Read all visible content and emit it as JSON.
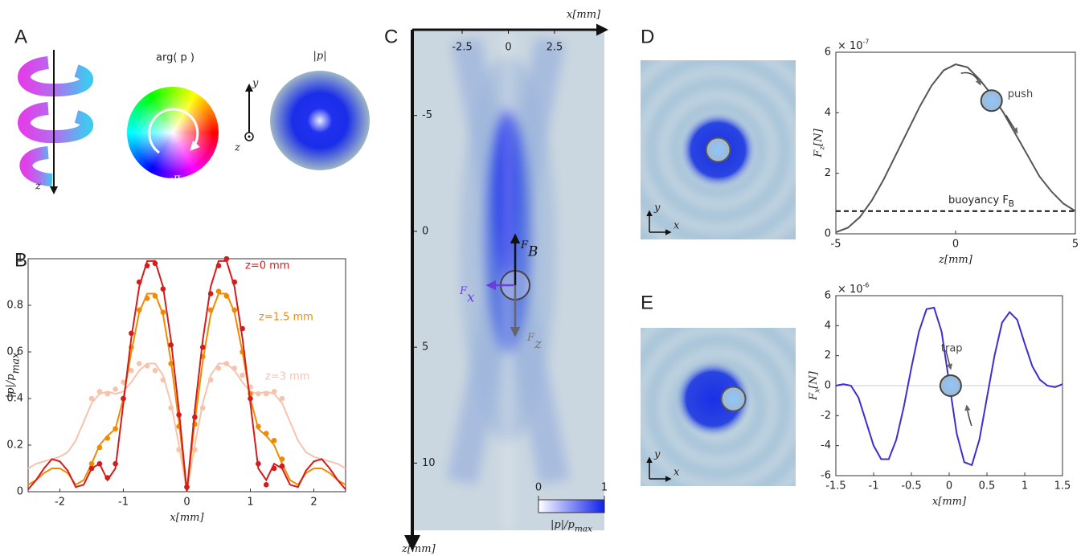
{
  "panel_labels": [
    "A",
    "B",
    "C",
    "D",
    "E"
  ],
  "panel_a": {
    "helix_axis": "z",
    "arg_label": "arg( p )",
    "phase_min": "-π",
    "phase_max": "π",
    "axis_y": "y",
    "axis_z": "z",
    "abs_label": "|p|"
  },
  "chart_data": [
    {
      "type": "line",
      "xlabel": [
        "x[mm]"
      ],
      "ylabel": [
        "|p|/p",
        "max"
      ],
      "xlim": [
        -2.5,
        2.5
      ],
      "xticks": [
        -2,
        -1,
        0,
        1,
        2
      ],
      "ylim": [
        0,
        1
      ],
      "yticks": [
        0,
        0.2,
        0.4,
        0.6,
        0.8,
        1
      ],
      "x": [
        -2.5,
        -2.375,
        -2.25,
        -2.125,
        -2,
        -1.875,
        -1.75,
        -1.625,
        -1.5,
        -1.375,
        -1.25,
        -1.125,
        -1,
        -0.875,
        -0.75,
        -0.625,
        -0.5,
        -0.375,
        -0.25,
        -0.125,
        0,
        0.125,
        0.25,
        0.375,
        0.5,
        0.625,
        0.75,
        0.875,
        1,
        1.125,
        1.25,
        1.375,
        1.5,
        1.625,
        1.75,
        1.875,
        2,
        2.125,
        2.25,
        2.375,
        2.5
      ],
      "measured_x": [
        -1.5,
        -1.375,
        -1.25,
        -1.125,
        -1,
        -0.875,
        -0.75,
        -0.625,
        -0.5,
        -0.375,
        -0.25,
        -0.125,
        0,
        0.125,
        0.25,
        0.375,
        0.5,
        0.625,
        0.75,
        0.875,
        1,
        1.125,
        1.25,
        1.375,
        1.5
      ],
      "series": [
        {
          "name": "z=3 mm",
          "color": "#f8c3ad",
          "values": [
            0.1,
            0.12,
            0.13,
            0.14,
            0.15,
            0.17,
            0.22,
            0.3,
            0.38,
            0.42,
            0.43,
            0.42,
            0.43,
            0.47,
            0.52,
            0.55,
            0.55,
            0.5,
            0.38,
            0.2,
            0,
            0.2,
            0.38,
            0.5,
            0.55,
            0.55,
            0.52,
            0.47,
            0.43,
            0.42,
            0.43,
            0.42,
            0.38,
            0.3,
            0.22,
            0.17,
            0.15,
            0.14,
            0.13,
            0.12,
            0.1
          ],
          "measured": [
            0.4,
            0.43,
            0.42,
            0.44,
            0.47,
            0.52,
            0.55,
            0.54,
            0.52,
            0.48,
            0.36,
            0.18,
            0.02,
            0.18,
            0.36,
            0.48,
            0.53,
            0.55,
            0.53,
            0.5,
            0.45,
            0.42,
            0.42,
            0.43,
            0.4
          ]
        },
        {
          "name": "z=1.5 mm",
          "color": "#f28a00",
          "values": [
            0.03,
            0.05,
            0.08,
            0.1,
            0.1,
            0.08,
            0.03,
            0.05,
            0.12,
            0.2,
            0.24,
            0.27,
            0.4,
            0.6,
            0.77,
            0.85,
            0.85,
            0.76,
            0.56,
            0.3,
            0,
            0.3,
            0.56,
            0.76,
            0.85,
            0.85,
            0.77,
            0.6,
            0.4,
            0.27,
            0.24,
            0.2,
            0.12,
            0.05,
            0.03,
            0.08,
            0.1,
            0.1,
            0.08,
            0.05,
            0.03
          ],
          "measured": [
            0.12,
            0.19,
            0.23,
            0.27,
            0.4,
            0.62,
            0.78,
            0.83,
            0.84,
            0.77,
            0.55,
            0.28,
            0.02,
            0.29,
            0.58,
            0.78,
            0.86,
            0.84,
            0.78,
            0.6,
            0.42,
            0.28,
            0.25,
            0.22,
            0.14
          ]
        },
        {
          "name": "z=0 mm",
          "color": "#d41c1c",
          "values": [
            0.01,
            0.05,
            0.1,
            0.14,
            0.13,
            0.09,
            0.02,
            0.03,
            0.1,
            0.12,
            0.05,
            0.1,
            0.38,
            0.66,
            0.88,
            0.99,
            0.99,
            0.88,
            0.65,
            0.35,
            0,
            0.35,
            0.65,
            0.88,
            0.99,
            0.99,
            0.88,
            0.66,
            0.38,
            0.1,
            0.05,
            0.12,
            0.1,
            0.03,
            0.02,
            0.09,
            0.13,
            0.14,
            0.1,
            0.05,
            0.01
          ],
          "measured": [
            0.1,
            0.12,
            0.06,
            0.12,
            0.4,
            0.68,
            0.9,
            0.97,
            0.98,
            0.87,
            0.63,
            0.33,
            0.02,
            0.32,
            0.62,
            0.85,
            0.97,
            1,
            0.9,
            0.7,
            0.4,
            0.12,
            0.03,
            0.1,
            0.11
          ]
        }
      ]
    },
    {
      "type": "field",
      "xlabel": [
        "x[mm]"
      ],
      "ylabel": [
        "z[mm]"
      ],
      "xlim": [
        -5.2,
        5.2
      ],
      "xticks": [
        -2.5,
        0,
        2.5
      ],
      "ylim": [
        -8.7,
        12.9
      ],
      "yticks": [
        -5,
        0,
        5,
        10
      ],
      "forces": [
        [
          "F",
          "B"
        ],
        [
          "F",
          "x"
        ],
        [
          "F",
          "z"
        ]
      ],
      "colorbar": {
        "ticks": [
          0,
          1
        ],
        "label": [
          "|p|/p",
          "max"
        ]
      }
    },
    {
      "type": "line",
      "image_axes": [
        "x",
        "y"
      ],
      "xlabel": [
        "z[mm]"
      ],
      "ylabel": [
        "F",
        "z",
        "[N]"
      ],
      "y_scale": [
        "× 10",
        "-7"
      ],
      "xlim": [
        -5,
        5
      ],
      "xticks": [
        -5,
        0,
        5
      ],
      "ylim": [
        0,
        6
      ],
      "yticks": [
        0,
        2,
        4,
        6
      ],
      "x": [
        -5,
        -4.5,
        -4,
        -3.5,
        -3,
        -2.5,
        -2,
        -1.5,
        -1,
        -0.5,
        0,
        0.5,
        1,
        1.5,
        2,
        2.5,
        3,
        3.5,
        4,
        4.5,
        5
      ],
      "series": [
        {
          "color": "#555555",
          "values": [
            0.05,
            0.2,
            0.55,
            1.1,
            1.8,
            2.6,
            3.4,
            4.2,
            4.9,
            5.4,
            5.6,
            5.5,
            5.1,
            4.6,
            4.0,
            3.3,
            2.6,
            1.9,
            1.4,
            1.0,
            0.75
          ]
        }
      ],
      "reference": {
        "value": 0.75,
        "label": [
          "buoyancy F",
          "B"
        ]
      },
      "particle": [
        1.5,
        4.4
      ],
      "annotation": "push"
    },
    {
      "type": "line",
      "image_axes": [
        "x",
        "y"
      ],
      "zero_line": true,
      "xlabel": [
        "x[mm]"
      ],
      "ylabel": [
        "F",
        "x",
        "[N]"
      ],
      "y_scale": [
        "× 10",
        "-6"
      ],
      "xlim": [
        -1.5,
        1.5
      ],
      "xticks": [
        -1.5,
        -1,
        -0.5,
        0,
        0.5,
        1,
        1.5
      ],
      "ylim": [
        -6,
        6
      ],
      "yticks": [
        -6,
        -4,
        -2,
        0,
        2,
        4,
        6
      ],
      "x": [
        -1.5,
        -1.4,
        -1.3,
        -1.2,
        -1.1,
        -1,
        -0.9,
        -0.8,
        -0.7,
        -0.6,
        -0.5,
        -0.4,
        -0.3,
        -0.2,
        -0.1,
        0,
        0.1,
        0.2,
        0.3,
        0.4,
        0.5,
        0.6,
        0.7,
        0.8,
        0.9,
        1,
        1.1,
        1.2,
        1.3,
        1.4,
        1.5
      ],
      "series": [
        {
          "color": "#3b2fcf",
          "values": [
            0,
            0.1,
            0,
            -0.8,
            -2.4,
            -4.0,
            -4.9,
            -4.9,
            -3.6,
            -1.4,
            1.2,
            3.6,
            5.1,
            5.2,
            3.6,
            0.2,
            -3.2,
            -5.1,
            -5.3,
            -3.6,
            -0.8,
            2.0,
            4.2,
            4.9,
            4.4,
            2.8,
            1.3,
            0.4,
            0,
            -0.1,
            0.1
          ]
        }
      ],
      "particle": [
        0.02,
        0
      ],
      "annotation": "trap"
    }
  ]
}
